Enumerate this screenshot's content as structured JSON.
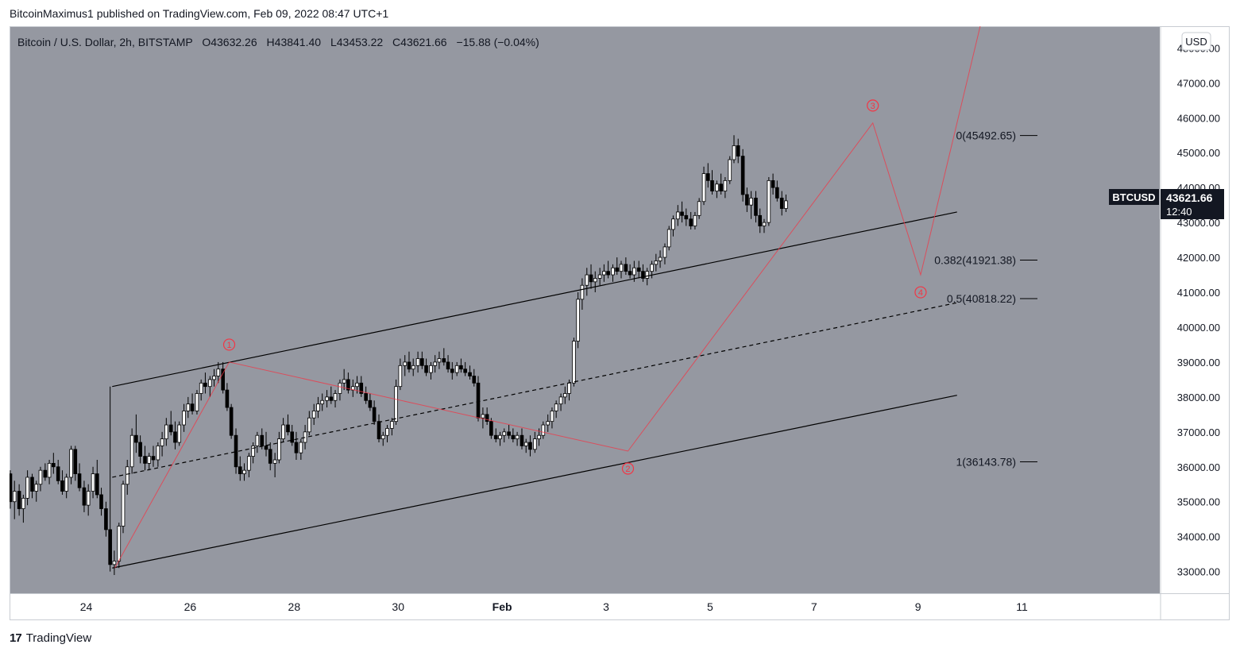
{
  "header": {
    "publisher_line": "BitcoinMaximus1 published on TradingView.com, Feb 09, 2022 08:47 UTC+1"
  },
  "legend": {
    "symbol": "Bitcoin / U.S. Dollar, 2h, BITSTAMP",
    "o_label": "O",
    "o_value": "43632.26",
    "h_label": "H",
    "h_value": "43841.40",
    "l_label": "L",
    "l_value": "43453.22",
    "c_label": "C",
    "c_value": "43621.66",
    "change": "−15.88 (−0.04%)"
  },
  "currency_button": "USD",
  "price_tag": {
    "symbol": "BTCUSD",
    "price": "43621.66",
    "countdown": "12:40"
  },
  "footer": {
    "brand": "TradingView",
    "logo": "17"
  },
  "colors": {
    "plot_bg": "#9598a1",
    "bull": "#ffffff",
    "bear": "#000000",
    "wave": "#f23645",
    "text": "#131722"
  },
  "chart_data": {
    "type": "candlestick",
    "timeframe": "2h",
    "yaxis": {
      "ticks": [
        33000,
        34000,
        35000,
        36000,
        37000,
        38000,
        39000,
        40000,
        41000,
        42000,
        43000,
        44000,
        45000,
        46000,
        47000,
        48000
      ],
      "ylim": [
        32400,
        48600
      ]
    },
    "xaxis": {
      "ticks": [
        {
          "label": "24",
          "x": 0
        },
        {
          "label": "26",
          "x": 2
        },
        {
          "label": "28",
          "x": 4
        },
        {
          "label": "30",
          "x": 6
        },
        {
          "label": "Feb",
          "x": 8
        },
        {
          "label": "3",
          "x": 10
        },
        {
          "label": "5",
          "x": 12
        },
        {
          "label": "7",
          "x": 14
        },
        {
          "label": "9",
          "x": 16
        },
        {
          "label": "11",
          "x": 18
        }
      ],
      "xlim": [
        -1.46,
        20.65
      ],
      "x_unit": "days since Jan 24 2022"
    },
    "fib_levels": [
      {
        "label": "0(45492.65)",
        "value": 45492.65
      },
      {
        "label": "0.382(41921.38)",
        "value": 41921.38
      },
      {
        "label": "0.5(40818.22)",
        "value": 40818.22
      },
      {
        "label": "1(36143.78)",
        "value": 36143.78
      }
    ],
    "waves": [
      {
        "label": "1",
        "x": 2.75,
        "y": 39000,
        "label_y": 39500
      },
      {
        "label": "2",
        "x": 10.42,
        "y": 36450,
        "label_y": 35860
      },
      {
        "label": "3",
        "x": 18.05,
        "y": 45850,
        "label_y": 46320
      },
      {
        "label": "4",
        "x": 16.98,
        "y": 41500,
        "label_y": 41050
      }
    ],
    "wave_path": [
      [
        0.55,
        33100
      ],
      [
        2.75,
        39000
      ],
      [
        10.42,
        36450
      ],
      [
        15.13,
        45850
      ],
      [
        16.05,
        41500
      ],
      [
        17.2,
        48650
      ]
    ],
    "channel": {
      "upper": [
        [
          0.5,
          38300
        ],
        [
          16.75,
          43300
        ]
      ],
      "lower": [
        [
          0.5,
          33100
        ],
        [
          16.75,
          38050
        ]
      ],
      "mid": [
        [
          0.5,
          35700
        ],
        [
          16.75,
          40700
        ]
      ]
    },
    "ohlc": [
      [
        -1.46,
        35800,
        35900,
        34800,
        35000
      ],
      [
        -1.38,
        35000,
        35600,
        34500,
        35300
      ],
      [
        -1.29,
        35300,
        35500,
        34600,
        34800
      ],
      [
        -1.21,
        34800,
        35200,
        34400,
        35100
      ],
      [
        -1.13,
        35100,
        35900,
        34900,
        35700
      ],
      [
        -1.04,
        35700,
        35800,
        35100,
        35300
      ],
      [
        -0.96,
        35300,
        35600,
        35000,
        35500
      ],
      [
        -0.88,
        35500,
        36000,
        35300,
        35900
      ],
      [
        -0.79,
        35900,
        36100,
        35600,
        35700
      ],
      [
        -0.71,
        35700,
        36200,
        35500,
        36100
      ],
      [
        -0.63,
        36100,
        36400,
        35800,
        36000
      ],
      [
        -0.54,
        36000,
        36200,
        35500,
        35600
      ],
      [
        -0.46,
        35600,
        35900,
        35200,
        35300
      ],
      [
        -0.38,
        35300,
        35800,
        35100,
        35700
      ],
      [
        -0.29,
        35700,
        36600,
        35500,
        36500
      ],
      [
        -0.21,
        36500,
        36600,
        35600,
        35800
      ],
      [
        -0.13,
        35800,
        36100,
        35300,
        35400
      ],
      [
        -0.04,
        35400,
        35600,
        34700,
        34900
      ],
      [
        0.04,
        34900,
        35500,
        34600,
        35300
      ],
      [
        0.13,
        35300,
        36000,
        35100,
        35800
      ],
      [
        0.21,
        35800,
        36200,
        35100,
        35200
      ],
      [
        0.29,
        35200,
        35400,
        34600,
        34800
      ],
      [
        0.38,
        34800,
        35000,
        34000,
        34200
      ],
      [
        0.46,
        34200,
        38300,
        33000,
        33200
      ],
      [
        0.54,
        33200,
        33600,
        32900,
        33300
      ],
      [
        0.63,
        33300,
        34400,
        33100,
        34300
      ],
      [
        0.71,
        34300,
        35600,
        34100,
        35500
      ],
      [
        0.79,
        35500,
        36200,
        35200,
        36000
      ],
      [
        0.88,
        36000,
        37100,
        35800,
        36900
      ],
      [
        0.96,
        36900,
        37500,
        36400,
        36700
      ],
      [
        1.04,
        36700,
        36900,
        36100,
        36300
      ],
      [
        1.13,
        36300,
        36600,
        35900,
        36100
      ],
      [
        1.21,
        36100,
        36400,
        35900,
        36300
      ],
      [
        1.29,
        36300,
        36600,
        36000,
        36200
      ],
      [
        1.38,
        36200,
        36700,
        36000,
        36600
      ],
      [
        1.46,
        36600,
        37000,
        36300,
        36800
      ],
      [
        1.54,
        36800,
        37400,
        36600,
        37200
      ],
      [
        1.63,
        37200,
        37600,
        36900,
        37000
      ],
      [
        1.71,
        37000,
        37300,
        36500,
        36700
      ],
      [
        1.79,
        36700,
        37300,
        36600,
        37200
      ],
      [
        1.88,
        37200,
        37800,
        37000,
        37600
      ],
      [
        1.96,
        37600,
        38000,
        37400,
        37800
      ],
      [
        2.04,
        37800,
        38100,
        37500,
        37600
      ],
      [
        2.13,
        37600,
        38200,
        37500,
        38100
      ],
      [
        2.21,
        38100,
        38500,
        37900,
        38400
      ],
      [
        2.29,
        38400,
        38700,
        38100,
        38300
      ],
      [
        2.38,
        38300,
        38600,
        38000,
        38500
      ],
      [
        2.46,
        38500,
        38800,
        38300,
        38600
      ],
      [
        2.54,
        38600,
        39000,
        38400,
        38800
      ],
      [
        2.63,
        38800,
        39000,
        38100,
        38200
      ],
      [
        2.71,
        38200,
        38400,
        37600,
        37700
      ],
      [
        2.79,
        37700,
        37800,
        36800,
        36900
      ],
      [
        2.88,
        36900,
        37100,
        35800,
        36000
      ],
      [
        2.96,
        36000,
        36300,
        35600,
        35800
      ],
      [
        3.04,
        35800,
        36100,
        35600,
        35900
      ],
      [
        3.13,
        35900,
        36400,
        35700,
        36300
      ],
      [
        3.21,
        36300,
        36700,
        36100,
        36600
      ],
      [
        3.29,
        36600,
        37000,
        36400,
        36900
      ],
      [
        3.38,
        36900,
        37100,
        36500,
        36600
      ],
      [
        3.46,
        36600,
        37000,
        36300,
        36500
      ],
      [
        3.54,
        36500,
        36700,
        35900,
        36100
      ],
      [
        3.63,
        36100,
        36400,
        35700,
        36200
      ],
      [
        3.71,
        36200,
        37000,
        36100,
        36800
      ],
      [
        3.79,
        36800,
        37400,
        36700,
        37200
      ],
      [
        3.88,
        37200,
        37500,
        36900,
        37000
      ],
      [
        3.96,
        37000,
        37200,
        36600,
        36700
      ],
      [
        4.04,
        36700,
        37000,
        36200,
        36400
      ],
      [
        4.13,
        36400,
        36800,
        36200,
        36700
      ],
      [
        4.21,
        36700,
        37200,
        36500,
        37000
      ],
      [
        4.29,
        37000,
        37600,
        36900,
        37400
      ],
      [
        4.38,
        37400,
        37800,
        37200,
        37600
      ],
      [
        4.46,
        37600,
        38000,
        37400,
        37800
      ],
      [
        4.54,
        37800,
        38100,
        37600,
        37900
      ],
      [
        4.63,
        37900,
        38200,
        37700,
        38000
      ],
      [
        4.71,
        38000,
        38300,
        37800,
        37900
      ],
      [
        4.79,
        37900,
        38200,
        37700,
        38100
      ],
      [
        4.88,
        38100,
        38500,
        37900,
        38400
      ],
      [
        4.96,
        38400,
        38800,
        38200,
        38500
      ],
      [
        5.04,
        38500,
        38700,
        38100,
        38200
      ],
      [
        5.13,
        38200,
        38500,
        38000,
        38300
      ],
      [
        5.21,
        38300,
        38600,
        38100,
        38400
      ],
      [
        5.29,
        38400,
        38600,
        38000,
        38100
      ],
      [
        5.38,
        38100,
        38300,
        37800,
        37900
      ],
      [
        5.46,
        37900,
        38100,
        37600,
        37700
      ],
      [
        5.54,
        37700,
        37900,
        37200,
        37300
      ],
      [
        5.63,
        37300,
        37500,
        36700,
        36800
      ],
      [
        5.71,
        36800,
        37000,
        36600,
        36900
      ],
      [
        5.79,
        36900,
        37200,
        36700,
        37100
      ],
      [
        5.88,
        37100,
        37400,
        36900,
        37300
      ],
      [
        5.96,
        37300,
        38500,
        37200,
        38300
      ],
      [
        6.04,
        38300,
        39100,
        38200,
        38900
      ],
      [
        6.13,
        38900,
        39200,
        38600,
        39000
      ],
      [
        6.21,
        39000,
        39300,
        38700,
        38800
      ],
      [
        6.29,
        38800,
        39100,
        38600,
        38900
      ],
      [
        6.38,
        38900,
        39300,
        38700,
        39100
      ],
      [
        6.46,
        39100,
        39300,
        38800,
        38900
      ],
      [
        6.54,
        38900,
        39100,
        38600,
        38700
      ],
      [
        6.63,
        38700,
        39000,
        38500,
        38900
      ],
      [
        6.71,
        38900,
        39200,
        38700,
        39000
      ],
      [
        6.79,
        39000,
        39300,
        38800,
        39100
      ],
      [
        6.88,
        39100,
        39400,
        38900,
        39000
      ],
      [
        6.96,
        39000,
        39200,
        38700,
        38800
      ],
      [
        7.04,
        38800,
        39000,
        38500,
        38700
      ],
      [
        7.13,
        38700,
        39000,
        38600,
        38900
      ],
      [
        7.21,
        38900,
        39100,
        38700,
        38800
      ],
      [
        7.29,
        38800,
        39000,
        38600,
        38700
      ],
      [
        7.38,
        38700,
        38900,
        38500,
        38600
      ],
      [
        7.46,
        38600,
        38800,
        38300,
        38400
      ],
      [
        7.54,
        38400,
        38600,
        37300,
        37400
      ],
      [
        7.63,
        37400,
        37700,
        37100,
        37500
      ],
      [
        7.71,
        37500,
        37700,
        37200,
        37300
      ],
      [
        7.79,
        37300,
        37400,
        36800,
        36900
      ],
      [
        7.88,
        36900,
        37100,
        36700,
        36800
      ],
      [
        7.96,
        36800,
        37000,
        36600,
        36900
      ],
      [
        8.04,
        36900,
        37100,
        36700,
        37000
      ],
      [
        8.13,
        37000,
        37200,
        36800,
        36900
      ],
      [
        8.21,
        36900,
        37100,
        36700,
        36800
      ],
      [
        8.29,
        36800,
        37000,
        36600,
        36900
      ],
      [
        8.38,
        36900,
        37100,
        36500,
        36600
      ],
      [
        8.46,
        36600,
        36800,
        36400,
        36700
      ],
      [
        8.54,
        36700,
        36900,
        36300,
        36500
      ],
      [
        8.63,
        36500,
        37000,
        36400,
        36800
      ],
      [
        8.71,
        36800,
        37100,
        36600,
        36900
      ],
      [
        8.79,
        36900,
        37300,
        36800,
        37200
      ],
      [
        8.88,
        37200,
        37500,
        37000,
        37300
      ],
      [
        8.96,
        37300,
        37700,
        37100,
        37600
      ],
      [
        9.04,
        37600,
        37900,
        37400,
        37800
      ],
      [
        9.13,
        37800,
        38100,
        37600,
        38000
      ],
      [
        9.21,
        38000,
        38300,
        37800,
        38100
      ],
      [
        9.29,
        38100,
        38500,
        37900,
        38400
      ],
      [
        9.38,
        38400,
        39700,
        38300,
        39600
      ],
      [
        9.46,
        39600,
        41000,
        39400,
        40800
      ],
      [
        9.54,
        40800,
        41400,
        40500,
        41200
      ],
      [
        9.63,
        41200,
        41700,
        40900,
        41500
      ],
      [
        9.71,
        41500,
        41800,
        41100,
        41300
      ],
      [
        9.79,
        41300,
        41600,
        41000,
        41400
      ],
      [
        9.88,
        41400,
        41700,
        41200,
        41500
      ],
      [
        9.96,
        41500,
        41800,
        41300,
        41600
      ],
      [
        10.04,
        41600,
        41900,
        41400,
        41500
      ],
      [
        10.13,
        41500,
        41800,
        41300,
        41700
      ],
      [
        10.21,
        41700,
        42000,
        41500,
        41600
      ],
      [
        10.29,
        41600,
        41900,
        41400,
        41800
      ],
      [
        10.38,
        41800,
        42000,
        41500,
        41600
      ],
      [
        10.46,
        41600,
        41800,
        41400,
        41500
      ],
      [
        10.54,
        41500,
        41900,
        41300,
        41700
      ],
      [
        10.63,
        41700,
        41900,
        41400,
        41600
      ],
      [
        10.71,
        41600,
        41800,
        41300,
        41400
      ],
      [
        10.79,
        41400,
        41700,
        41200,
        41600
      ],
      [
        10.88,
        41600,
        41900,
        41400,
        41800
      ],
      [
        10.96,
        41800,
        42100,
        41600,
        41900
      ],
      [
        11.04,
        41900,
        42200,
        41700,
        42000
      ],
      [
        11.13,
        42000,
        42400,
        41800,
        42300
      ],
      [
        11.21,
        42300,
        42900,
        42200,
        42800
      ],
      [
        11.29,
        42800,
        43200,
        42600,
        43100
      ],
      [
        11.38,
        43100,
        43500,
        42900,
        43300
      ],
      [
        11.46,
        43300,
        43600,
        43000,
        43200
      ],
      [
        11.54,
        43200,
        43400,
        42900,
        43100
      ],
      [
        11.63,
        43100,
        43300,
        42800,
        42900
      ],
      [
        11.71,
        42900,
        43300,
        42800,
        43200
      ],
      [
        11.79,
        43200,
        43700,
        43100,
        43600
      ],
      [
        11.88,
        43600,
        44600,
        43500,
        44400
      ],
      [
        11.96,
        44400,
        44700,
        44000,
        44200
      ],
      [
        12.04,
        44200,
        44500,
        43800,
        43900
      ],
      [
        12.13,
        43900,
        44200,
        43700,
        44100
      ],
      [
        12.21,
        44100,
        44400,
        43800,
        43900
      ],
      [
        12.29,
        43900,
        44300,
        43700,
        44200
      ],
      [
        12.38,
        44200,
        44900,
        44100,
        44800
      ],
      [
        12.46,
        44800,
        45500,
        44700,
        45200
      ],
      [
        12.54,
        45200,
        45400,
        44700,
        44900
      ],
      [
        12.63,
        44900,
        45100,
        43600,
        43800
      ],
      [
        12.71,
        43800,
        44000,
        43300,
        43500
      ],
      [
        12.79,
        43500,
        43900,
        43100,
        43700
      ],
      [
        12.88,
        43700,
        43900,
        43000,
        43200
      ],
      [
        12.96,
        43200,
        43400,
        42700,
        42900
      ],
      [
        13.04,
        42900,
        43100,
        42700,
        43000
      ],
      [
        13.13,
        43000,
        44300,
        42900,
        44200
      ],
      [
        13.21,
        44200,
        44400,
        43800,
        44000
      ],
      [
        13.29,
        44000,
        44200,
        43600,
        43700
      ],
      [
        13.38,
        43700,
        43900,
        43200,
        43400
      ],
      [
        13.46,
        43400,
        43800,
        43300,
        43620
      ]
    ]
  }
}
